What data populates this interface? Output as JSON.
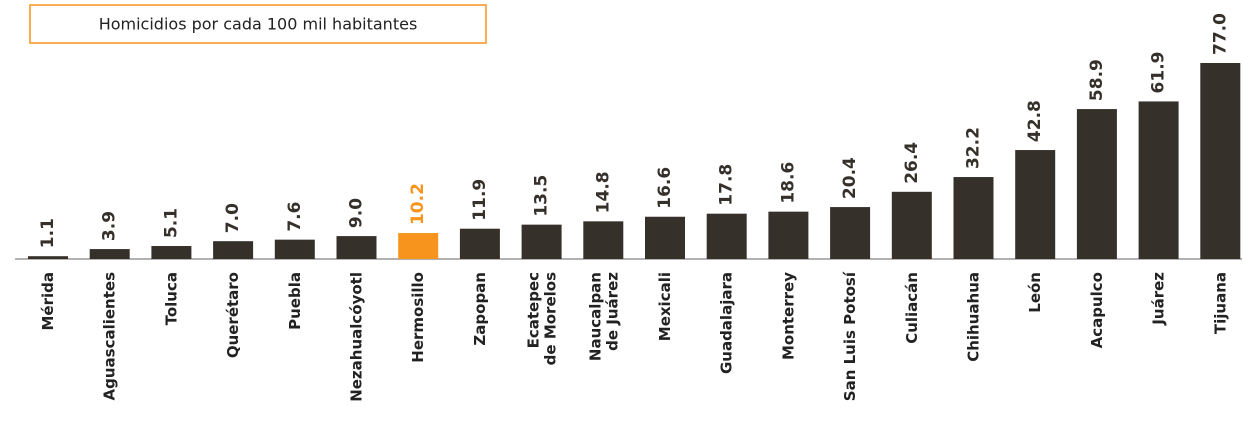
{
  "chart_data": {
    "type": "bar",
    "title": "Homicidios por cada 100 mil habitantes",
    "categories": [
      "Mérida",
      "Aguascalientes",
      "Toluca",
      "Querétaro",
      "Puebla",
      "Nezahualcóyotl",
      "Hermosillo",
      "Zapopan",
      [
        "Ecatepec",
        "de Morelos"
      ],
      [
        "Naucalpan",
        "de Juárez"
      ],
      "Mexicali",
      "Guadalajara",
      "Monterrey",
      "San Luis Potosí",
      "Culiacán",
      "Chihuahua",
      "León",
      "Acapulco",
      "Juárez",
      "Tijuana"
    ],
    "values": [
      1.1,
      3.9,
      5.1,
      7.0,
      7.6,
      9.0,
      10.2,
      11.9,
      13.5,
      14.8,
      16.6,
      17.8,
      18.6,
      20.4,
      26.4,
      32.2,
      42.8,
      58.9,
      61.9,
      77.0
    ],
    "value_labels": [
      "1.1",
      "3.9",
      "5.1",
      "7.0",
      "7.6",
      "9.0",
      "10.2",
      "11.9",
      "13.5",
      "14.8",
      "16.6",
      "17.8",
      "18.6",
      "20.4",
      "26.4",
      "32.2",
      "42.8",
      "58.9",
      "61.9",
      "77.0"
    ],
    "colors": [
      "#36302b",
      "#36302b",
      "#36302b",
      "#36302b",
      "#36302b",
      "#36302b",
      "#f7941d",
      "#36302b",
      "#36302b",
      "#36302b",
      "#36302b",
      "#36302b",
      "#36302b",
      "#36302b",
      "#36302b",
      "#36302b",
      "#36302b",
      "#36302b",
      "#36302b",
      "#36302b"
    ]
  }
}
